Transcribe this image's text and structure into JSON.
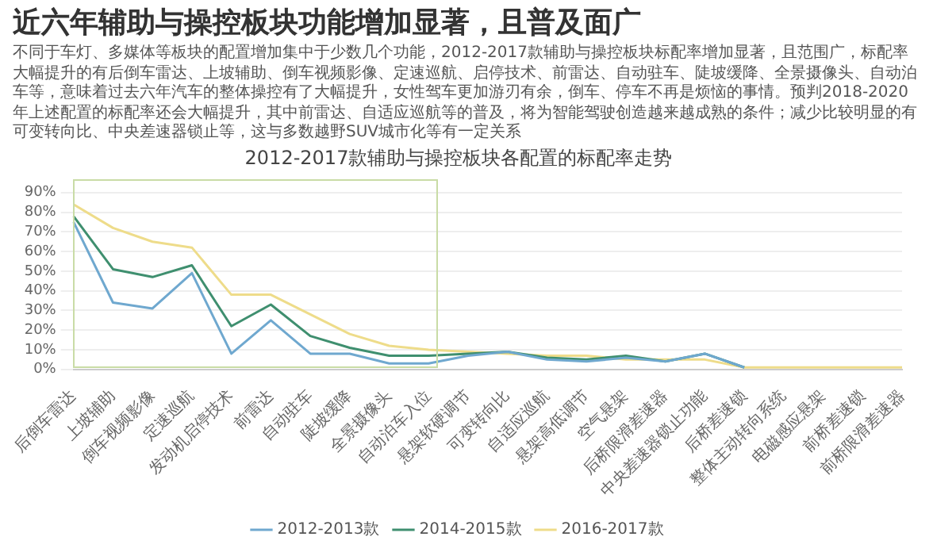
{
  "chart_data": {
    "type": "line",
    "title": "近六年辅助与操控板块功能增加显著，且普及面广",
    "subtitle": "不同于车灯、多媒体等板块的配置增加集中于少数几个功能，2012-2017款辅助与操控板块标配率增加显著，且范围广，标配率大幅提升的有后倒车雷达、上坡辅助、倒车视频影像、定速巡航、启停技术、前雷达、自动驻车、陡坡缓降、全景摄像头、自动泊车等，意味着过去六年汽车的整体操控有了大幅提升，女性驾车更加游刃有余，倒车、停车不再是烦恼的事情。预判2018-2020年上述配置的标配率还会大幅提升，其中前雷达、自适应巡航等的普及，将为智能驾驶创造越来越成熟的条件；减少比较明显的有可变转向比、中央差速器锁止等，这与多数越野SUV城市化等有一定关系",
    "annotations": [
      "2012-2017款辅助与操控板块各配置的标配率走势"
    ],
    "categories": [
      "后倒车雷达",
      "上坡辅助",
      "倒车视频影像",
      "定速巡航",
      "发动机启停技术",
      "前雷达",
      "自动驻车",
      "陡坡缓降",
      "全景摄像头",
      "自动泊车入位",
      "悬架软硬调节",
      "可变转向比",
      "自适应巡航",
      "悬架高低调节",
      "空气悬架",
      "后桥限滑差速器",
      "中央差速器锁止功能",
      "后桥差速锁",
      "整体主动转向系统",
      "电磁感应悬架",
      "前桥差速锁",
      "前桥限滑差速器"
    ],
    "series": [
      {
        "name": "2012-2013款",
        "color": "#6fa8cf",
        "values": [
          75,
          34,
          31,
          49,
          8,
          25,
          8,
          8,
          3,
          3,
          7,
          9,
          5,
          4,
          6,
          4,
          8,
          1,
          null,
          null,
          null,
          null
        ]
      },
      {
        "name": "2014-2015款",
        "color": "#3f8f6f",
        "values": [
          78,
          51,
          47,
          53,
          22,
          33,
          17,
          11,
          7,
          7,
          8,
          9,
          6,
          5,
          7,
          4,
          8,
          1,
          null,
          null,
          null,
          null
        ]
      },
      {
        "name": "2016-2017款",
        "color": "#eedc8a",
        "values": [
          84,
          72,
          65,
          62,
          38,
          38,
          28,
          18,
          12,
          10,
          9,
          8,
          7,
          7,
          5,
          5,
          5,
          1,
          1,
          1,
          1,
          1
        ]
      }
    ],
    "ylim": [
      0,
      90
    ],
    "yticks": [
      {
        "value": 0,
        "label": "0%"
      },
      {
        "value": 10,
        "label": "10%"
      },
      {
        "value": 20,
        "label": "20%"
      },
      {
        "value": 30,
        "label": "30%"
      },
      {
        "value": 40,
        "label": "40%"
      },
      {
        "value": 50,
        "label": "50%"
      },
      {
        "value": 60,
        "label": "60%"
      },
      {
        "value": 70,
        "label": "70%"
      },
      {
        "value": 80,
        "label": "80%"
      },
      {
        "value": 90,
        "label": "90%"
      }
    ],
    "grid": "y",
    "legend": "bottom",
    "marker": "none",
    "line_style": "solid"
  }
}
